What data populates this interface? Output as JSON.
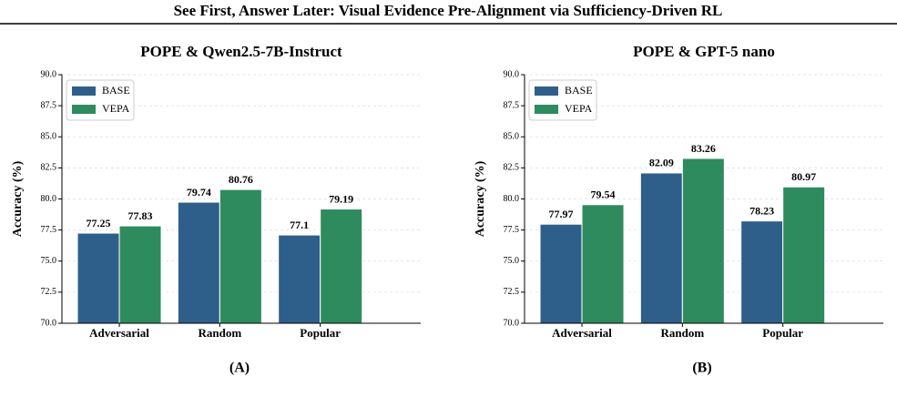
{
  "header": {
    "title": "See First, Answer Later: Visual Evidence Pre-Alignment via Sufficiency-Driven RL"
  },
  "chart_data": [
    {
      "type": "bar",
      "title": "POPE & Qwen2.5-7B-Instruct",
      "caption": "(A)",
      "y_label": "Accuracy (%)",
      "categories": [
        "Adversarial",
        "Random",
        "Popular"
      ],
      "series": [
        {
          "name": "BASE",
          "color": "#2e5f8a",
          "values": [
            77.25,
            79.74,
            77.1
          ]
        },
        {
          "name": "VEPA",
          "color": "#2e8b5e",
          "values": [
            77.83,
            80.76,
            79.19
          ]
        }
      ],
      "ylim": [
        70,
        90
      ],
      "yticks": [
        {
          "value": 70,
          "label": "70.0"
        },
        72.5,
        {
          "value": 75,
          "label": "75.0"
        },
        77.5,
        {
          "value": 80,
          "label": "80.0"
        },
        82.5,
        {
          "value": 85,
          "label": "85.0"
        },
        87.5,
        {
          "value": 90,
          "label": "90.0"
        }
      ],
      "grid": true,
      "legend": "upper-left"
    },
    {
      "type": "bar",
      "title": "POPE & GPT-5 nano",
      "caption": "(B)",
      "y_label": "Accuracy (%)",
      "categories": [
        "Adversarial",
        "Random",
        "Popular"
      ],
      "series": [
        {
          "name": "BASE",
          "color": "#2e5f8a",
          "values": [
            77.97,
            82.09,
            78.23
          ]
        },
        {
          "name": "VEPA",
          "color": "#2e8b5e",
          "values": [
            79.54,
            83.26,
            80.97
          ]
        }
      ],
      "ylim": [
        70,
        90
      ],
      "yticks": [
        {
          "value": 70,
          "label": "70.0"
        },
        72.5,
        {
          "value": 75,
          "label": "75.0"
        },
        77.5,
        {
          "value": 80,
          "label": "80.0"
        },
        82.5,
        {
          "value": 85,
          "label": "85.0"
        },
        87.5,
        {
          "value": 90,
          "label": "90.0"
        }
      ],
      "grid": true,
      "legend": "upper-left"
    }
  ]
}
